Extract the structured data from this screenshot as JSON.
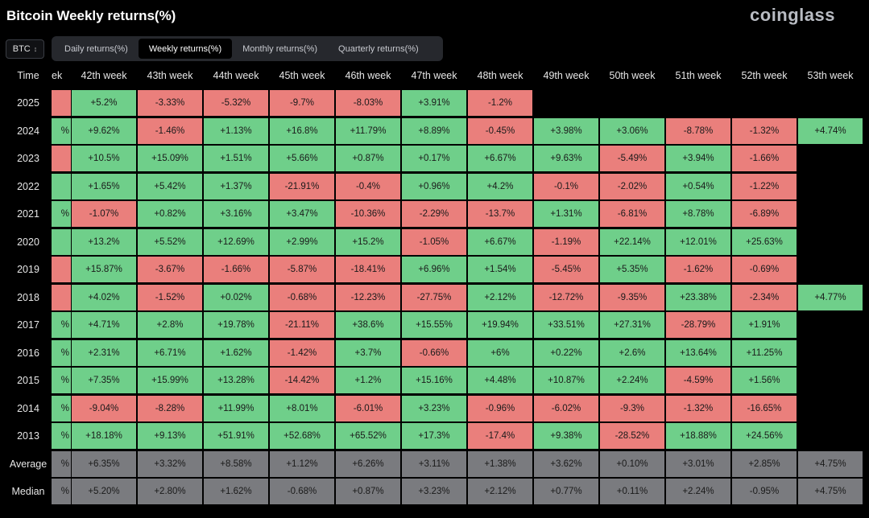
{
  "header": {
    "title": "Bitcoin Weekly returns(%)",
    "brand": "coinglass"
  },
  "coin_select": {
    "value": "BTC"
  },
  "tabs": [
    {
      "label": "Daily returns(%)",
      "active": false
    },
    {
      "label": "Weekly returns(%)",
      "active": true
    },
    {
      "label": "Monthly returns(%)",
      "active": false
    },
    {
      "label": "Quarterly returns(%)",
      "active": false
    }
  ],
  "colors": {
    "positive": "#6fcf8a",
    "negative": "#ea7f7c",
    "aggregate": "#7a7b7f"
  },
  "chart_data": {
    "type": "heatmap",
    "row_header": "Time",
    "partial_column": {
      "header": "ek",
      "cells": [
        "",
        "%",
        "",
        "",
        "%",
        "",
        "",
        "",
        "%",
        "%",
        "%",
        "%",
        "%"
      ],
      "signs": [
        "neg",
        "pos",
        "neg",
        "pos",
        "pos",
        "pos",
        "neg",
        "neg",
        "pos",
        "pos",
        "pos",
        "pos",
        "pos"
      ],
      "average": "%",
      "median": "%"
    },
    "columns": [
      "42th week",
      "43th week",
      "44th week",
      "45th week",
      "46th week",
      "47th week",
      "48th week",
      "49th week",
      "50th week",
      "51th week",
      "52th week",
      "53th week"
    ],
    "rows": [
      {
        "year": "2025",
        "values": [
          "+5.2%",
          "-3.33%",
          "-5.32%",
          "-9.7%",
          "-8.03%",
          "+3.91%",
          "-1.2%",
          "",
          "",
          "",
          "",
          ""
        ]
      },
      {
        "year": "2024",
        "values": [
          "+9.62%",
          "-1.46%",
          "+1.13%",
          "+16.8%",
          "+11.79%",
          "+8.89%",
          "-0.45%",
          "+3.98%",
          "+3.06%",
          "-8.78%",
          "-1.32%",
          "+4.74%"
        ]
      },
      {
        "year": "2023",
        "values": [
          "+10.5%",
          "+15.09%",
          "+1.51%",
          "+5.66%",
          "+0.87%",
          "+0.17%",
          "+6.67%",
          "+9.63%",
          "-5.49%",
          "+3.94%",
          "-1.66%",
          ""
        ]
      },
      {
        "year": "2022",
        "values": [
          "+1.65%",
          "+5.42%",
          "+1.37%",
          "-21.91%",
          "-0.4%",
          "+0.96%",
          "+4.2%",
          "-0.1%",
          "-2.02%",
          "+0.54%",
          "-1.22%",
          ""
        ]
      },
      {
        "year": "2021",
        "values": [
          "-1.07%",
          "+0.82%",
          "+3.16%",
          "+3.47%",
          "-10.36%",
          "-2.29%",
          "-13.7%",
          "+1.31%",
          "-6.81%",
          "+8.78%",
          "-6.89%",
          ""
        ]
      },
      {
        "year": "2020",
        "values": [
          "+13.2%",
          "+5.52%",
          "+12.69%",
          "+2.99%",
          "+15.2%",
          "-1.05%",
          "+6.67%",
          "-1.19%",
          "+22.14%",
          "+12.01%",
          "+25.63%",
          ""
        ]
      },
      {
        "year": "2019",
        "values": [
          "+15.87%",
          "-3.67%",
          "-1.66%",
          "-5.87%",
          "-18.41%",
          "+6.96%",
          "+1.54%",
          "-5.45%",
          "+5.35%",
          "-1.62%",
          "-0.69%",
          ""
        ]
      },
      {
        "year": "2018",
        "values": [
          "+4.02%",
          "-1.52%",
          "+0.02%",
          "-0.68%",
          "-12.23%",
          "-27.75%",
          "+2.12%",
          "-12.72%",
          "-9.35%",
          "+23.38%",
          "-2.34%",
          "+4.77%"
        ]
      },
      {
        "year": "2017",
        "values": [
          "+4.71%",
          "+2.8%",
          "+19.78%",
          "-21.11%",
          "+38.6%",
          "+15.55%",
          "+19.94%",
          "+33.51%",
          "+27.31%",
          "-28.79%",
          "+1.91%",
          ""
        ]
      },
      {
        "year": "2016",
        "values": [
          "+2.31%",
          "+6.71%",
          "+1.62%",
          "-1.42%",
          "+3.7%",
          "-0.66%",
          "+6%",
          "+0.22%",
          "+2.6%",
          "+13.64%",
          "+11.25%",
          ""
        ]
      },
      {
        "year": "2015",
        "values": [
          "+7.35%",
          "+15.99%",
          "+13.28%",
          "-14.42%",
          "+1.2%",
          "+15.16%",
          "+4.48%",
          "+10.87%",
          "+2.24%",
          "-4.59%",
          "+1.56%",
          ""
        ]
      },
      {
        "year": "2014",
        "values": [
          "-9.04%",
          "-8.28%",
          "+11.99%",
          "+8.01%",
          "-6.01%",
          "+3.23%",
          "-0.96%",
          "-6.02%",
          "-9.3%",
          "-1.32%",
          "-16.65%",
          ""
        ]
      },
      {
        "year": "2013",
        "values": [
          "+18.18%",
          "+9.13%",
          "+51.91%",
          "+52.68%",
          "+65.52%",
          "+17.3%",
          "-17.4%",
          "+9.38%",
          "-28.52%",
          "+18.88%",
          "+24.56%",
          ""
        ]
      }
    ],
    "aggregates": [
      {
        "label": "Average",
        "values": [
          "+6.35%",
          "+3.32%",
          "+8.58%",
          "+1.12%",
          "+6.26%",
          "+3.11%",
          "+1.38%",
          "+3.62%",
          "+0.10%",
          "+3.01%",
          "+2.85%",
          "+4.75%"
        ]
      },
      {
        "label": "Median",
        "values": [
          "+5.20%",
          "+2.80%",
          "+1.62%",
          "-0.68%",
          "+0.87%",
          "+3.23%",
          "+2.12%",
          "+0.77%",
          "+0.11%",
          "+2.24%",
          "-0.95%",
          "+4.75%"
        ]
      }
    ]
  }
}
